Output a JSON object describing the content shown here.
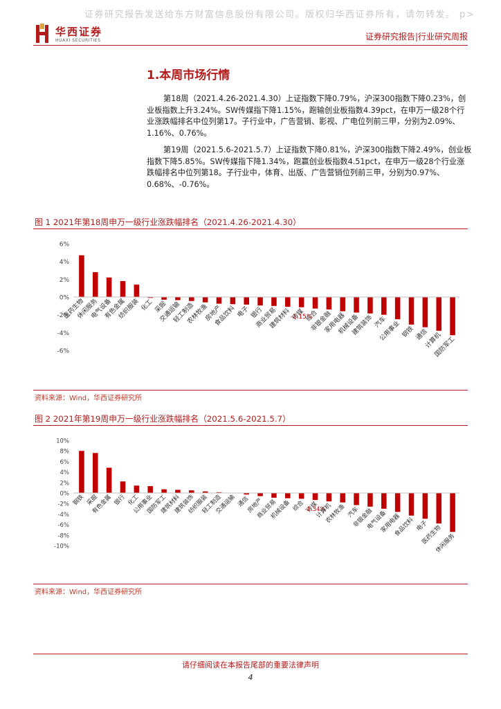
{
  "header": {
    "watermark": "证券研究报告发送给东方财富信息股份有限公司。版权归华西证券所有，请勿转发。 p>",
    "logo_cn": "华西证券",
    "logo_en": "HUAXI SECURITIES",
    "report_type": "证券研究报告|行业研究周报",
    "brand_color": "#b31b1b"
  },
  "section": {
    "title": "1.本周市场行情",
    "paragraphs": [
      "第18周（2021.4.26-2021.4.30）上证指数下降0.79%，沪深300指数下降0.23%，创业板指数上升3.24%。SW传媒指下降1.15%，跑输创业板指数4.39pct，在申万一级28个行业涨跌幅排名中位列第17。子行业中，广告营销、影视、广电位列前三甲，分别为2.09%、1.16%、0.76%。",
      "第19周（2021.5.6-2021.5.7）上证指数下降0.81%，沪深300指数下降2.49%，创业板指数下降5.85%。SW传媒指下降1.34%，跑赢创业板指数4.51pct，在申万一级28个行业涨跌幅排名中位列第18。子行业中，体育、出版、广告营销位列前三甲，分别为0.97%、0.68%、-0.76%。"
    ]
  },
  "figures": [
    {
      "title": "图 1 2021年第18周申万一级行业涨跌幅排名（2021.4.26-2021.4.30）",
      "source": "资料来源：Wind，华西证券研究所"
    },
    {
      "title": "图 2 2021年第19周申万一级行业涨跌幅排名（2021.5.6-2021.5.7）",
      "source": "资料来源：Wind，华西证券研究所"
    }
  ],
  "chart_data": [
    {
      "type": "bar",
      "title": "2021年第18周申万一级行业涨跌幅排名（2021.4.26-2021.4.30）",
      "categories": [
        "医药生物",
        "休闲服务",
        "电气设备",
        "有色金属",
        "纺织服装",
        "化工",
        "采掘",
        "交通运输",
        "轻工制造",
        "农林牧渔",
        "房地产",
        "食品饮料",
        "电子",
        "银行",
        "商业贸易",
        "建筑材料",
        "传媒",
        "综合",
        "非银金融",
        "家用电器",
        "机械设备",
        "建筑装饰",
        "汽车",
        "公用事业",
        "钢铁",
        "通信",
        "计算机",
        "国防军工"
      ],
      "values": [
        4.7,
        2.8,
        2.2,
        1.8,
        1.4,
        -0.1,
        -0.3,
        -0.35,
        -0.45,
        -0.6,
        -0.75,
        -0.8,
        -0.85,
        -0.95,
        -1.0,
        -1.1,
        -1.15,
        -1.3,
        -1.4,
        -1.6,
        -1.75,
        -1.85,
        -2.0,
        -2.5,
        -3.1,
        -3.4,
        -3.8,
        -4.3
      ],
      "ylim": [
        -6,
        6
      ],
      "yticks": [
        "6%",
        "4%",
        "2%",
        "0%",
        "-2%",
        "-4%",
        "-6%"
      ],
      "highlight": {
        "category": "传媒",
        "label": "-1.15%"
      },
      "bar_color": "#c00000",
      "grid": false
    },
    {
      "type": "bar",
      "title": "2021年第19周申万一级行业涨跌幅排名（2021.5.6-2021.5.7）",
      "categories": [
        "钢铁",
        "采掘",
        "有色金属",
        "银行",
        "化工",
        "公用事业",
        "国防军工",
        "建筑材料",
        "建筑装饰",
        "纺织服装",
        "轻工制造",
        "交通运输",
        "通信",
        "房地产",
        "商业贸易",
        "机械设备",
        "综合",
        "传媒",
        "计算机",
        "农林牧渔",
        "汽车",
        "非银金融",
        "电气设备",
        "家用电器",
        "食品饮料",
        "电子",
        "医药生物",
        "休闲服务"
      ],
      "values": [
        8.0,
        7.6,
        4.8,
        2.2,
        1.4,
        1.3,
        0.7,
        0.6,
        0.5,
        0.3,
        0.15,
        0.05,
        -0.3,
        -0.6,
        -0.9,
        -1.0,
        -1.1,
        -1.34,
        -1.6,
        -1.8,
        -2.3,
        -2.6,
        -3.0,
        -3.6,
        -4.3,
        -4.9,
        -5.8,
        -7.4
      ],
      "ylim": [
        -10,
        10
      ],
      "yticks": [
        "10%",
        "8%",
        "6%",
        "4%",
        "2%",
        "0%",
        "-2%",
        "-4%",
        "-6%",
        "-8%",
        "-10%"
      ],
      "highlight": {
        "category": "传媒",
        "label": "-1.34%"
      },
      "bar_color": "#c00000",
      "grid": false
    }
  ],
  "footer": {
    "notice": "请仔细阅读在本报告尾部的重要法律声明",
    "page": "4"
  }
}
